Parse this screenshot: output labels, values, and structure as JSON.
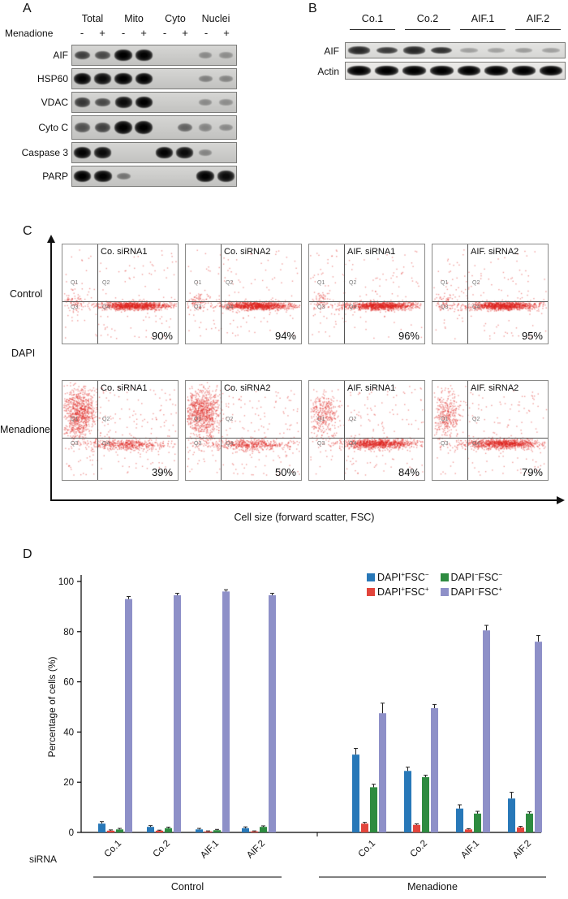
{
  "panelA": {
    "label": "A",
    "treatment_label": "Menadione",
    "group_headers": [
      "Total",
      "Mito",
      "Cyto",
      "Nuclei"
    ],
    "lane_signs": [
      "-",
      "+",
      "-",
      "+",
      "-",
      "+",
      "-",
      "+"
    ],
    "rows": [
      {
        "label": "AIF",
        "bands": [
          0.55,
          0.5,
          0.95,
          0.9,
          0,
          0,
          0.12,
          0.1
        ]
      },
      {
        "label": "HSP60",
        "bands": [
          0.9,
          0.85,
          0.95,
          0.95,
          0,
          0,
          0.18,
          0.15
        ]
      },
      {
        "label": "VDAC",
        "bands": [
          0.6,
          0.5,
          0.85,
          0.95,
          0,
          0,
          0.12,
          0.1
        ]
      },
      {
        "label": "Cyto C",
        "bands": [
          0.45,
          0.55,
          1.0,
          1.0,
          0,
          0.35,
          0.15,
          0.12
        ]
      },
      {
        "label": "Caspase 3",
        "bands": [
          0.9,
          0.85,
          0,
          0,
          0.9,
          0.85,
          0.15,
          0
        ]
      },
      {
        "label": "PARP",
        "bands": [
          0.95,
          0.9,
          0.25,
          0,
          0,
          0,
          0.9,
          0.85
        ]
      }
    ]
  },
  "panelB": {
    "label": "B",
    "group_headers": [
      "Co.1",
      "Co.2",
      "AIF.1",
      "AIF.2"
    ],
    "rows": [
      {
        "label": "AIF",
        "bands": [
          0.7,
          0.6,
          0.7,
          0.65,
          0.06,
          0.05,
          0.08,
          0.06
        ]
      },
      {
        "label": "Actin",
        "bands": [
          0.95,
          0.95,
          0.95,
          0.95,
          0.92,
          0.92,
          0.92,
          0.92
        ]
      }
    ]
  },
  "flow": {
    "label": "C",
    "ylabel": "DAPI",
    "xlabel": "Cell size (forward scatter, FSC)",
    "row_labels": [
      "Control",
      "Menadione"
    ],
    "quadrant_labels": [
      "Q1",
      "Q2",
      "Q3",
      "Q4"
    ],
    "plots": [
      {
        "title": "Co. siRNA1",
        "percent": "90%"
      },
      {
        "title": "Co. siRNA2",
        "percent": "94%"
      },
      {
        "title": "AIF. siRNA1",
        "percent": "96%"
      },
      {
        "title": "AIF. siRNA2",
        "percent": "95%"
      },
      {
        "title": "Co. siRNA1",
        "percent": "39%"
      },
      {
        "title": "Co. siRNA2",
        "percent": "50%"
      },
      {
        "title": "AIF. siRNA1",
        "percent": "84%"
      },
      {
        "title": "AIF. siRNA2",
        "percent": "79%"
      }
    ]
  },
  "panelD": {
    "label": "D",
    "xlabel_prefix": "siRNA"
  },
  "chart_data": {
    "type": "bar",
    "title": "",
    "ylabel": "Percentage of cells (%)",
    "ylim": [
      0,
      100
    ],
    "yticks": [
      0,
      20,
      40,
      60,
      80,
      100
    ],
    "group_labels": [
      "Control",
      "Menadione"
    ],
    "categories": [
      "Co.1",
      "Co.2",
      "AIF.1",
      "AIF.2",
      "Co.1",
      "Co.2",
      "AIF.1",
      "AIF.2"
    ],
    "series": [
      {
        "name": "DAPI+FSC-",
        "color": "#2878b8",
        "values": [
          3.5,
          2.2,
          1.2,
          1.7,
          31,
          24.5,
          9.5,
          13.5
        ],
        "errors": [
          0.8,
          0.5,
          0.4,
          0.5,
          2.5,
          1.5,
          1.5,
          2.5
        ]
      },
      {
        "name": "DAPI+FSC+",
        "color": "#e2453c",
        "values": [
          0.7,
          0.7,
          0.4,
          0.4,
          3.5,
          3,
          1.2,
          2
        ],
        "errors": [
          0.3,
          0.2,
          0.2,
          0.2,
          0.5,
          0.4,
          0.3,
          0.4
        ]
      },
      {
        "name": "DAPI-FSC-",
        "color": "#2e8b40",
        "values": [
          1.2,
          1.7,
          0.9,
          2.2,
          18,
          22,
          7.5,
          7.5
        ],
        "errors": [
          0.4,
          0.4,
          0.3,
          0.4,
          1.2,
          0.8,
          0.9,
          0.7
        ]
      },
      {
        "name": "DAPI-FSC+",
        "color": "#8e90c8",
        "values": [
          93,
          94.5,
          96,
          94.5,
          47.5,
          49.5,
          80.5,
          76
        ],
        "errors": [
          1,
          0.8,
          0.7,
          0.8,
          4,
          1.5,
          2,
          2.5
        ]
      }
    ]
  }
}
